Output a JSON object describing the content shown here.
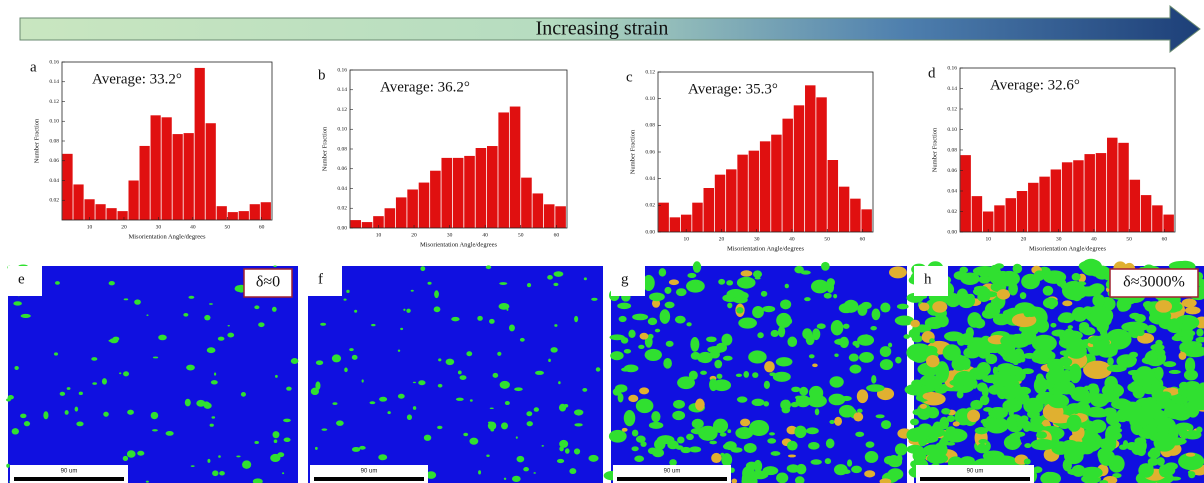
{
  "header": {
    "label": "Increasing strain"
  },
  "chart_data": [
    {
      "type": "histogram",
      "panel": "a",
      "annotation": "Average: 33.2°",
      "x_label": "Misorientation Angle/degrees",
      "y_label": "Number Fraction",
      "color": "#e01010",
      "bins": [
        2,
        5.2,
        8.4,
        11.6,
        14.8,
        18,
        21.2,
        24.4,
        27.6,
        30.8,
        34,
        37.2,
        40.4,
        43.6,
        46.8,
        50,
        53.2,
        56.4,
        59.6,
        62.8
      ],
      "values": [
        0.067,
        0.036,
        0.021,
        0.016,
        0.012,
        0.009,
        0.04,
        0.075,
        0.106,
        0.104,
        0.087,
        0.088,
        0.154,
        0.098,
        0.014,
        0.008,
        0.009,
        0.016,
        0.018
      ],
      "xlim": [
        2,
        63
      ],
      "xticks": [
        10,
        20,
        30,
        40,
        50,
        60
      ],
      "ylim": [
        0,
        0.16
      ],
      "yticks": [
        0.02,
        0.04,
        0.06,
        0.08,
        {
          "value": 0.1,
          "label": "0.10"
        },
        0.12,
        0.14,
        0.16
      ]
    },
    {
      "type": "histogram",
      "panel": "b",
      "annotation": "Average: 36.2°",
      "x_label": "Misorientation Angle/degrees",
      "y_label": "Number Fraction",
      "color": "#e01010",
      "bins": [
        2,
        5.2,
        8.4,
        11.6,
        14.8,
        18,
        21.2,
        24.4,
        27.6,
        30.8,
        34,
        37.2,
        40.4,
        43.6,
        46.8,
        50,
        53.2,
        56.4,
        59.6,
        62.8
      ],
      "values": [
        0.008,
        0.006,
        0.012,
        0.02,
        0.031,
        0.039,
        0.046,
        0.058,
        0.071,
        0.071,
        0.073,
        0.081,
        0.083,
        0.117,
        0.123,
        0.051,
        0.035,
        0.024,
        0.022
      ],
      "xlim": [
        2,
        63
      ],
      "xticks": [
        10,
        20,
        30,
        40,
        50,
        60
      ],
      "ylim": [
        0,
        0.16
      ],
      "yticks": [
        {
          "value": 0,
          "label": "0.00"
        },
        0.02,
        0.04,
        0.06,
        0.08,
        {
          "value": 0.1,
          "label": "0.10"
        },
        0.12,
        0.14,
        0.16
      ]
    },
    {
      "type": "histogram",
      "panel": "c",
      "annotation": "Average: 35.3°",
      "x_label": "Misorientation Angle/degrees",
      "y_label": "Number Fraction",
      "color": "#e01010",
      "bins": [
        2,
        5.2,
        8.4,
        11.6,
        14.8,
        18,
        21.2,
        24.4,
        27.6,
        30.8,
        34,
        37.2,
        40.4,
        43.6,
        46.8,
        50,
        53.2,
        56.4,
        59.6,
        62.8
      ],
      "values": [
        0.022,
        0.011,
        0.013,
        0.022,
        0.033,
        0.043,
        0.047,
        0.058,
        0.061,
        0.068,
        0.073,
        0.085,
        0.095,
        0.11,
        0.101,
        0.054,
        0.034,
        0.025,
        0.017
      ],
      "xlim": [
        2,
        63
      ],
      "xticks": [
        10,
        20,
        30,
        40,
        50,
        60
      ],
      "ylim": [
        0,
        0.12
      ],
      "yticks": [
        {
          "value": 0,
          "label": "0.00"
        },
        0.02,
        0.04,
        0.06,
        0.08,
        {
          "value": 0.1,
          "label": "0.10"
        },
        0.12
      ]
    },
    {
      "type": "histogram",
      "panel": "d",
      "annotation": "Average: 32.6°",
      "x_label": "Misorientation Angle/degrees",
      "y_label": "Number Fraction",
      "color": "#e01010",
      "bins": [
        2,
        5.2,
        8.4,
        11.6,
        14.8,
        18,
        21.2,
        24.4,
        27.6,
        30.8,
        34,
        37.2,
        40.4,
        43.6,
        46.8,
        50,
        53.2,
        56.4,
        59.6,
        62.8
      ],
      "values": [
        0.075,
        0.035,
        0.02,
        0.026,
        0.033,
        0.04,
        0.048,
        0.054,
        0.061,
        0.068,
        0.07,
        0.076,
        0.077,
        0.092,
        0.087,
        0.051,
        0.036,
        0.026,
        0.017
      ],
      "xlim": [
        2,
        63
      ],
      "xticks": [
        10,
        20,
        30,
        40,
        50,
        60
      ],
      "ylim": [
        0,
        0.16
      ],
      "yticks": [
        {
          "value": 0,
          "label": "0.00"
        },
        0.02,
        0.04,
        0.06,
        0.08,
        {
          "value": 0.1,
          "label": "0.10"
        },
        0.12,
        0.14,
        0.16
      ]
    }
  ],
  "images": [
    {
      "panel": "e",
      "strain": "δ≈0",
      "scale_bar": "90 um"
    },
    {
      "panel": "f",
      "scale_bar": "90 um"
    },
    {
      "panel": "g",
      "scale_bar": "90 um"
    },
    {
      "panel": "h",
      "strain": "δ≈3000%",
      "scale_bar": "90 um"
    }
  ]
}
